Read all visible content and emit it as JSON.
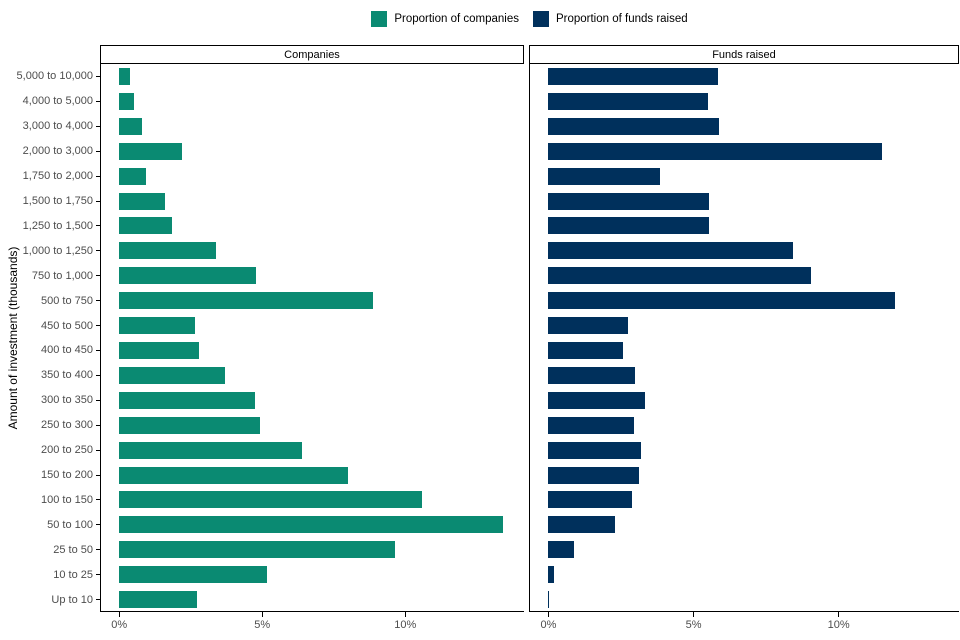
{
  "chart_data": {
    "type": "bar",
    "orientation": "horizontal",
    "ylabel": "Amount of investment (thousands)",
    "xlabel": "",
    "grid": "off",
    "legend_position": "top",
    "x_ticks": [
      0,
      5,
      10
    ],
    "x_tick_labels": [
      "0%",
      "5%",
      "10%"
    ],
    "xlim": [
      -0.62,
      14.15
    ],
    "categories": [
      "5,000 to 10,000",
      "4,000 to 5,000",
      "3,000 to 4,000",
      "2,000 to 3,000",
      "1,750 to 2,000",
      "1,500 to 1,750",
      "1,250 to 1,500",
      "1,000 to 1,250",
      "750 to 1,000",
      "500 to 750",
      "450 to 500",
      "400 to 450",
      "350 to 400",
      "300 to 350",
      "250 to 300",
      "200 to 250",
      "150 to 200",
      "100 to 150",
      "50 to 100",
      "25 to 50",
      "10 to 25",
      "Up to 10"
    ],
    "facets": [
      {
        "label": "Companies",
        "series": "Proportion of companies",
        "color": "#0a8a72",
        "values": [
          0.4,
          0.55,
          0.8,
          2.2,
          0.95,
          1.6,
          1.85,
          3.4,
          4.8,
          8.9,
          2.65,
          2.8,
          3.7,
          4.75,
          4.95,
          6.4,
          8.0,
          10.6,
          13.45,
          9.65,
          5.2,
          2.75
        ]
      },
      {
        "label": "Funds raised",
        "series": "Proportion of funds raised",
        "color": "#00305c",
        "values": [
          5.85,
          5.5,
          5.9,
          11.5,
          3.85,
          5.55,
          5.55,
          8.45,
          9.05,
          11.95,
          2.75,
          2.6,
          3.0,
          3.35,
          2.95,
          3.2,
          3.15,
          2.9,
          2.3,
          0.9,
          0.2,
          0.05
        ]
      }
    ],
    "legend": {
      "items": [
        {
          "label": "Proportion of companies",
          "color": "#0a8a72"
        },
        {
          "label": "Proportion of funds raised",
          "color": "#00305c"
        }
      ]
    }
  }
}
